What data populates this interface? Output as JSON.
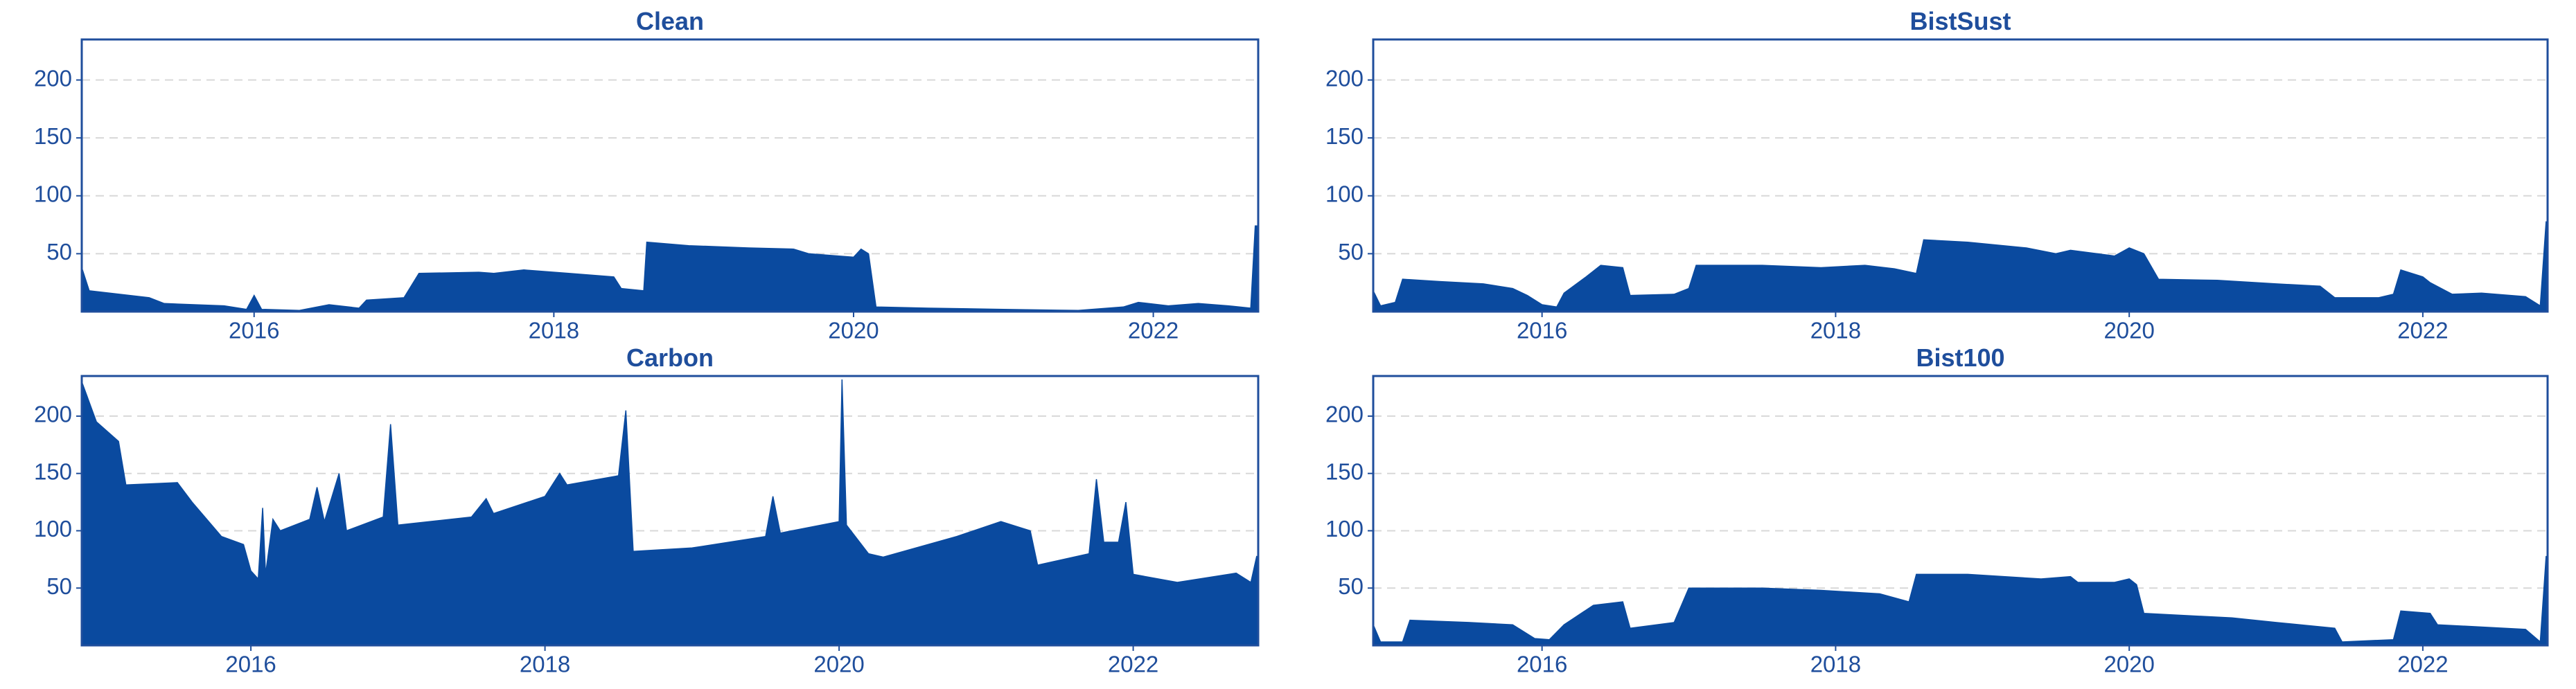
{
  "chart_data": [
    {
      "type": "area",
      "title": "Clean",
      "color": "#0a4a9f",
      "grid": true,
      "xlim": [
        2014.85,
        2022.7
      ],
      "xticks": [
        2016,
        2018,
        2020,
        2022
      ],
      "ylim": [
        0,
        235
      ],
      "yticks": [
        50,
        100,
        150,
        200
      ],
      "x": [
        2014.85,
        2014.9,
        2015.1,
        2015.3,
        2015.4,
        2015.8,
        2015.95,
        2016.0,
        2016.05,
        2016.3,
        2016.5,
        2016.7,
        2016.75,
        2017.0,
        2017.1,
        2017.5,
        2017.6,
        2017.8,
        2018.1,
        2018.4,
        2018.45,
        2018.6,
        2018.62,
        2018.9,
        2019.3,
        2019.6,
        2019.7,
        2020.0,
        2020.05,
        2020.1,
        2020.15,
        2020.5,
        2021.0,
        2021.5,
        2021.8,
        2021.9,
        2022.1,
        2022.3,
        2022.5,
        2022.65,
        2022.68,
        2022.7
      ],
      "values": [
        38,
        18,
        15,
        12,
        7,
        5,
        2,
        14,
        2,
        1,
        6,
        3,
        10,
        12,
        33,
        34,
        33,
        36,
        33,
        30,
        20,
        18,
        60,
        57,
        55,
        54,
        50,
        47,
        54,
        50,
        4,
        3,
        2,
        1,
        4,
        8,
        5,
        7,
        5,
        3,
        74,
        74
      ]
    },
    {
      "type": "area",
      "title": "BistSust",
      "color": "#0a4a9f",
      "grid": true,
      "xlim": [
        2014.85,
        2022.85
      ],
      "xticks": [
        2016,
        2018,
        2020,
        2022
      ],
      "ylim": [
        0,
        235
      ],
      "yticks": [
        50,
        100,
        150,
        200
      ],
      "x": [
        2014.85,
        2014.9,
        2015.0,
        2015.05,
        2015.3,
        2015.6,
        2015.8,
        2015.9,
        2016.0,
        2016.1,
        2016.15,
        2016.3,
        2016.4,
        2016.55,
        2016.6,
        2016.9,
        2017.0,
        2017.05,
        2017.5,
        2017.9,
        2018.2,
        2018.4,
        2018.55,
        2018.6,
        2018.9,
        2019.3,
        2019.5,
        2019.6,
        2019.9,
        2020.0,
        2020.1,
        2020.2,
        2020.6,
        2021.0,
        2021.3,
        2021.4,
        2021.7,
        2021.8,
        2021.85,
        2022.0,
        2022.05,
        2022.2,
        2022.4,
        2022.7,
        2022.8,
        2022.84
      ],
      "values": [
        18,
        5,
        8,
        28,
        26,
        24,
        20,
        14,
        6,
        4,
        16,
        30,
        40,
        38,
        14,
        15,
        20,
        40,
        40,
        38,
        40,
        37,
        33,
        62,
        60,
        55,
        50,
        53,
        48,
        55,
        50,
        28,
        27,
        24,
        22,
        12,
        12,
        15,
        36,
        30,
        25,
        15,
        16,
        13,
        5,
        78
      ]
    },
    {
      "type": "area",
      "title": "Carbon",
      "color": "#0a4a9f",
      "grid": true,
      "xlim": [
        2014.85,
        2022.85
      ],
      "xticks": [
        2016,
        2018,
        2020,
        2022
      ],
      "ylim": [
        0,
        235
      ],
      "yticks": [
        50,
        100,
        150,
        200
      ],
      "x": [
        2014.85,
        2014.95,
        2015.1,
        2015.15,
        2015.5,
        2015.6,
        2015.8,
        2015.95,
        2016.0,
        2016.05,
        2016.08,
        2016.1,
        2016.15,
        2016.2,
        2016.4,
        2016.45,
        2016.5,
        2016.6,
        2016.65,
        2016.9,
        2016.95,
        2017.0,
        2017.5,
        2017.6,
        2017.65,
        2018.0,
        2018.1,
        2018.15,
        2018.5,
        2018.55,
        2018.6,
        2019.0,
        2019.5,
        2019.55,
        2019.6,
        2020.0,
        2020.02,
        2020.05,
        2020.2,
        2020.3,
        2020.8,
        2021.1,
        2021.3,
        2021.35,
        2021.7,
        2021.75,
        2021.8,
        2021.9,
        2021.95,
        2022.0,
        2022.3,
        2022.7,
        2022.8,
        2022.84
      ],
      "values": [
        230,
        195,
        178,
        140,
        142,
        125,
        95,
        88,
        65,
        58,
        120,
        62,
        110,
        100,
        110,
        138,
        108,
        150,
        100,
        112,
        193,
        105,
        112,
        128,
        115,
        130,
        150,
        140,
        148,
        205,
        82,
        85,
        95,
        130,
        98,
        108,
        232,
        105,
        80,
        77,
        95,
        108,
        100,
        70,
        80,
        145,
        90,
        90,
        125,
        62,
        55,
        63,
        55,
        78
      ]
    },
    {
      "type": "area",
      "title": "Bist100",
      "color": "#0a4a9f",
      "grid": true,
      "xlim": [
        2014.85,
        2022.85
      ],
      "xticks": [
        2016,
        2018,
        2020,
        2022
      ],
      "ylim": [
        0,
        235
      ],
      "yticks": [
        50,
        100,
        150,
        200
      ],
      "x": [
        2014.85,
        2014.9,
        2015.05,
        2015.1,
        2015.5,
        2015.8,
        2015.95,
        2016.05,
        2016.15,
        2016.35,
        2016.55,
        2016.6,
        2016.9,
        2017.0,
        2017.5,
        2017.9,
        2018.3,
        2018.5,
        2018.55,
        2018.9,
        2019.4,
        2019.6,
        2019.65,
        2019.9,
        2020.0,
        2020.05,
        2020.1,
        2020.7,
        2021.0,
        2021.4,
        2021.45,
        2021.8,
        2021.85,
        2022.05,
        2022.1,
        2022.7,
        2022.8,
        2022.84
      ],
      "values": [
        18,
        3,
        3,
        22,
        20,
        18,
        6,
        5,
        18,
        35,
        38,
        15,
        20,
        50,
        50,
        48,
        45,
        38,
        62,
        62,
        58,
        60,
        55,
        55,
        58,
        53,
        28,
        24,
        20,
        15,
        3,
        5,
        30,
        28,
        18,
        14,
        3,
        78
      ]
    }
  ]
}
